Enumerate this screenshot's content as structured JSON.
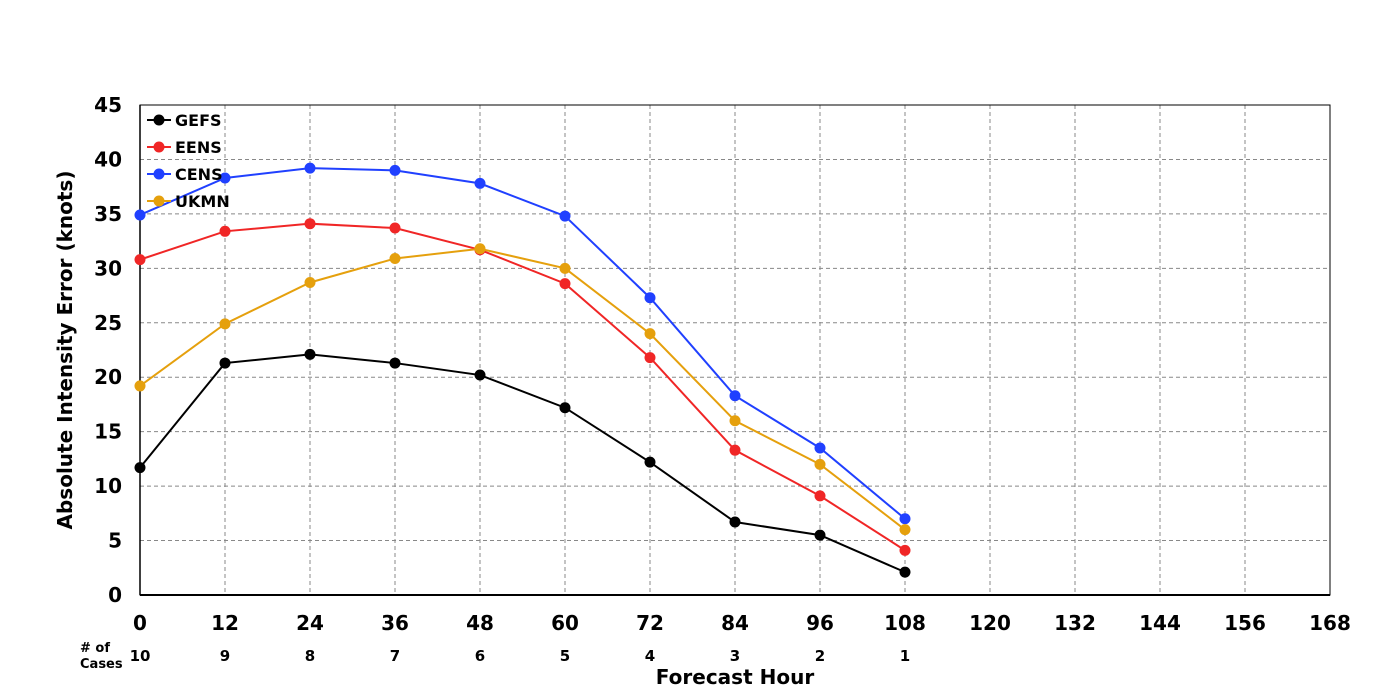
{
  "chart_data": {
    "type": "line",
    "xlabel": "Forecast Hour",
    "ylabel": "Absolute Intensity Error (knots)",
    "xlim": [
      0,
      168
    ],
    "ylim": [
      0,
      45
    ],
    "x_ticks": [
      0,
      12,
      24,
      36,
      48,
      60,
      72,
      84,
      96,
      108,
      120,
      132,
      144,
      156,
      168
    ],
    "y_ticks": [
      0,
      5,
      10,
      15,
      20,
      25,
      30,
      35,
      40,
      45
    ],
    "grid": true,
    "legend_position": "top-left",
    "cases_label": "# of Cases",
    "cases_label_lines": [
      "# of",
      "Cases"
    ],
    "cases": [
      {
        "x": 0,
        "n": "10"
      },
      {
        "x": 12,
        "n": "9"
      },
      {
        "x": 24,
        "n": "8"
      },
      {
        "x": 36,
        "n": "7"
      },
      {
        "x": 48,
        "n": "6"
      },
      {
        "x": 60,
        "n": "5"
      },
      {
        "x": 72,
        "n": "4"
      },
      {
        "x": 84,
        "n": "3"
      },
      {
        "x": 96,
        "n": "2"
      },
      {
        "x": 108,
        "n": "1"
      }
    ],
    "x": [
      0,
      12,
      24,
      36,
      48,
      60,
      72,
      84,
      96,
      108
    ],
    "series": [
      {
        "name": "GEFS",
        "color": "#000000",
        "values": [
          11.7,
          21.3,
          22.1,
          21.3,
          20.2,
          17.2,
          12.2,
          6.7,
          5.5,
          2.1
        ]
      },
      {
        "name": "EENS",
        "color": "#f02626",
        "values": [
          30.8,
          33.4,
          34.1,
          33.7,
          31.7,
          28.6,
          21.8,
          13.3,
          9.1,
          4.1
        ]
      },
      {
        "name": "CENS",
        "color": "#2040ff",
        "values": [
          34.9,
          38.3,
          39.2,
          39.0,
          37.8,
          34.8,
          27.3,
          18.3,
          13.5,
          7.0
        ]
      },
      {
        "name": "UKMN",
        "color": "#e5a00d",
        "values": [
          19.2,
          24.9,
          28.7,
          30.9,
          31.8,
          30.0,
          24.0,
          16.0,
          12.0,
          6.0
        ]
      }
    ]
  }
}
